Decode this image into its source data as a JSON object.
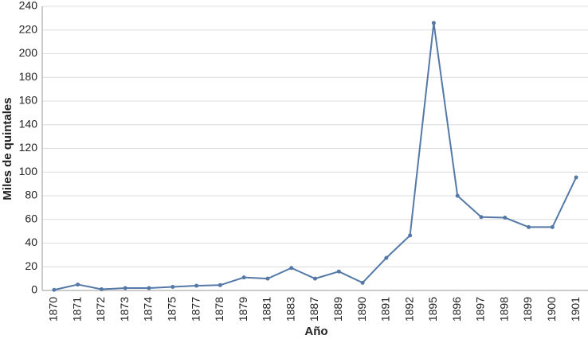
{
  "chart_data": {
    "type": "line",
    "x_label": "Año",
    "y_label": "Miles de quintales",
    "categories": [
      "1870",
      "1871",
      "1872",
      "1873",
      "1874",
      "1875",
      "1877",
      "1878",
      "1879",
      "1881",
      "1883",
      "1887",
      "1889",
      "1890",
      "1891",
      "1892",
      "1895",
      "1896",
      "1897",
      "1898",
      "1899",
      "1900",
      "1901"
    ],
    "values": [
      0.5,
      5,
      1,
      2,
      2,
      3,
      4,
      4.5,
      11,
      10,
      19,
      10,
      16,
      6.5,
      27.5,
      46.5,
      226,
      80,
      62,
      61.5,
      53.5,
      53.5,
      95.5
    ],
    "color": "#5479a6",
    "ylim": [
      0,
      240
    ],
    "yticks": [
      0,
      20,
      40,
      60,
      80,
      100,
      120,
      140,
      160,
      180,
      200,
      220,
      240
    ],
    "grid": true
  }
}
